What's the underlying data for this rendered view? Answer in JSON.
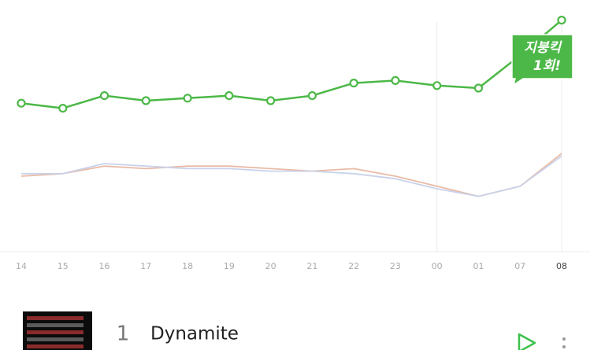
{
  "chart_data": {
    "type": "line",
    "categories": [
      "14",
      "15",
      "16",
      "17",
      "18",
      "19",
      "20",
      "21",
      "22",
      "23",
      "00",
      "01",
      "07",
      "08"
    ],
    "series": [
      {
        "color": "#4cb847",
        "markers": true,
        "values": [
          59,
          57,
          62,
          60,
          61,
          62,
          60,
          62,
          67,
          68,
          66,
          65,
          78,
          92
        ]
      },
      {
        "color": "#c9d2ea",
        "markers": false,
        "values": [
          31,
          31,
          35,
          34,
          33,
          33,
          32,
          32,
          31,
          29,
          25,
          22,
          26,
          38
        ]
      },
      {
        "color": "#e9bba6",
        "markers": false,
        "values": [
          30,
          31,
          34,
          33,
          34,
          34,
          33,
          32,
          33,
          30,
          26,
          22,
          26,
          39
        ]
      }
    ],
    "ylim": [
      0,
      100
    ],
    "annotation": [
      "지붕킥",
      "1회!"
    ]
  },
  "song": {
    "rank": 1,
    "title": "Dynamite"
  }
}
